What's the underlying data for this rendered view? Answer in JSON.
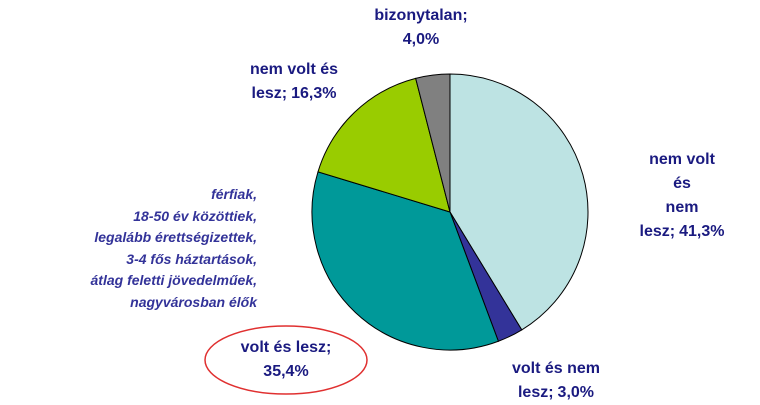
{
  "chart_data": {
    "type": "pie",
    "categories": [
      "nem volt és\nnem lesz;",
      "volt és nem\nlesz;",
      "volt és lesz;",
      "nem volt és\nlesz;",
      "bizonytalan;"
    ],
    "values": [
      41.3,
      3.0,
      35.4,
      16.3,
      4.0
    ],
    "value_labels": [
      "41,3%",
      "3,0%",
      "35,4%",
      "16,3%",
      "4,0%"
    ],
    "colors": [
      "#bde3e3",
      "#333399",
      "#009999",
      "#99cc00",
      "#808080"
    ],
    "annotation": [
      "férfiak,",
      "18-50 év közöttiek,",
      "legalább érettségizettek,",
      "3-4 fős háztartások,",
      "átlag feletti jövedelműek,",
      "nagyvárosban élők"
    ]
  }
}
